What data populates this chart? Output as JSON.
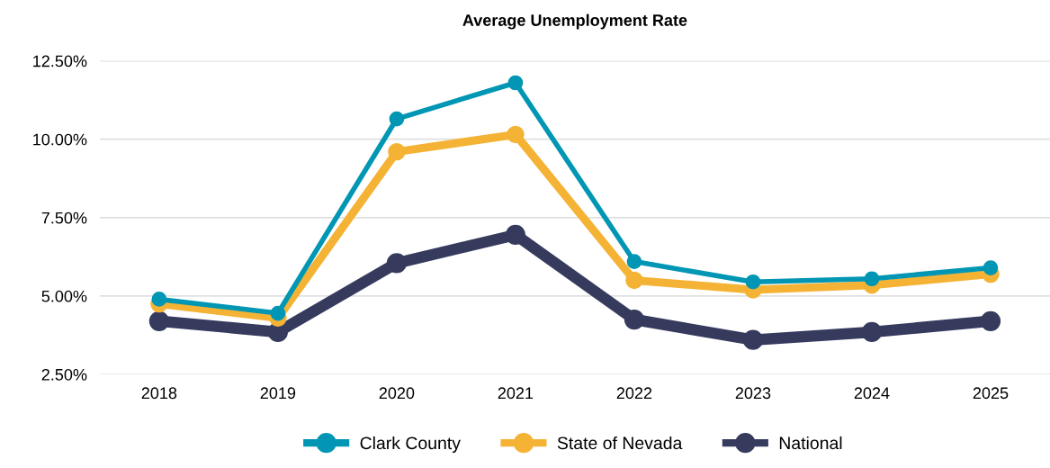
{
  "chart_data": {
    "type": "line",
    "title": "Average Unemployment Rate",
    "categories": [
      "2018",
      "2019",
      "2020",
      "2021",
      "2022",
      "2023",
      "2024",
      "2025"
    ],
    "series": [
      {
        "name": "Clark County",
        "color": "#0096b4",
        "values": [
          4.9,
          4.45,
          10.65,
          11.8,
          6.1,
          5.45,
          5.55,
          5.9
        ]
      },
      {
        "name": "State of Nevada",
        "color": "#f5b335",
        "values": [
          4.75,
          4.3,
          9.6,
          10.15,
          5.5,
          5.2,
          5.35,
          5.7
        ]
      },
      {
        "name": "National",
        "color": "#363b5e",
        "values": [
          4.2,
          3.85,
          6.05,
          6.95,
          4.25,
          3.6,
          3.85,
          4.2
        ]
      }
    ],
    "ylim": [
      2.5,
      12.5
    ],
    "yticks": [
      {
        "value": 2.5,
        "label": "2.50%"
      },
      {
        "value": 5,
        "label": "5.00%"
      },
      {
        "value": 7.5,
        "label": "7.50%"
      },
      {
        "value": 10,
        "label": "10.00%"
      },
      {
        "value": 12.5,
        "label": "12.50%"
      }
    ],
    "grid": "y",
    "legend": "bottom",
    "marker": "circle",
    "line_style": "solid"
  }
}
